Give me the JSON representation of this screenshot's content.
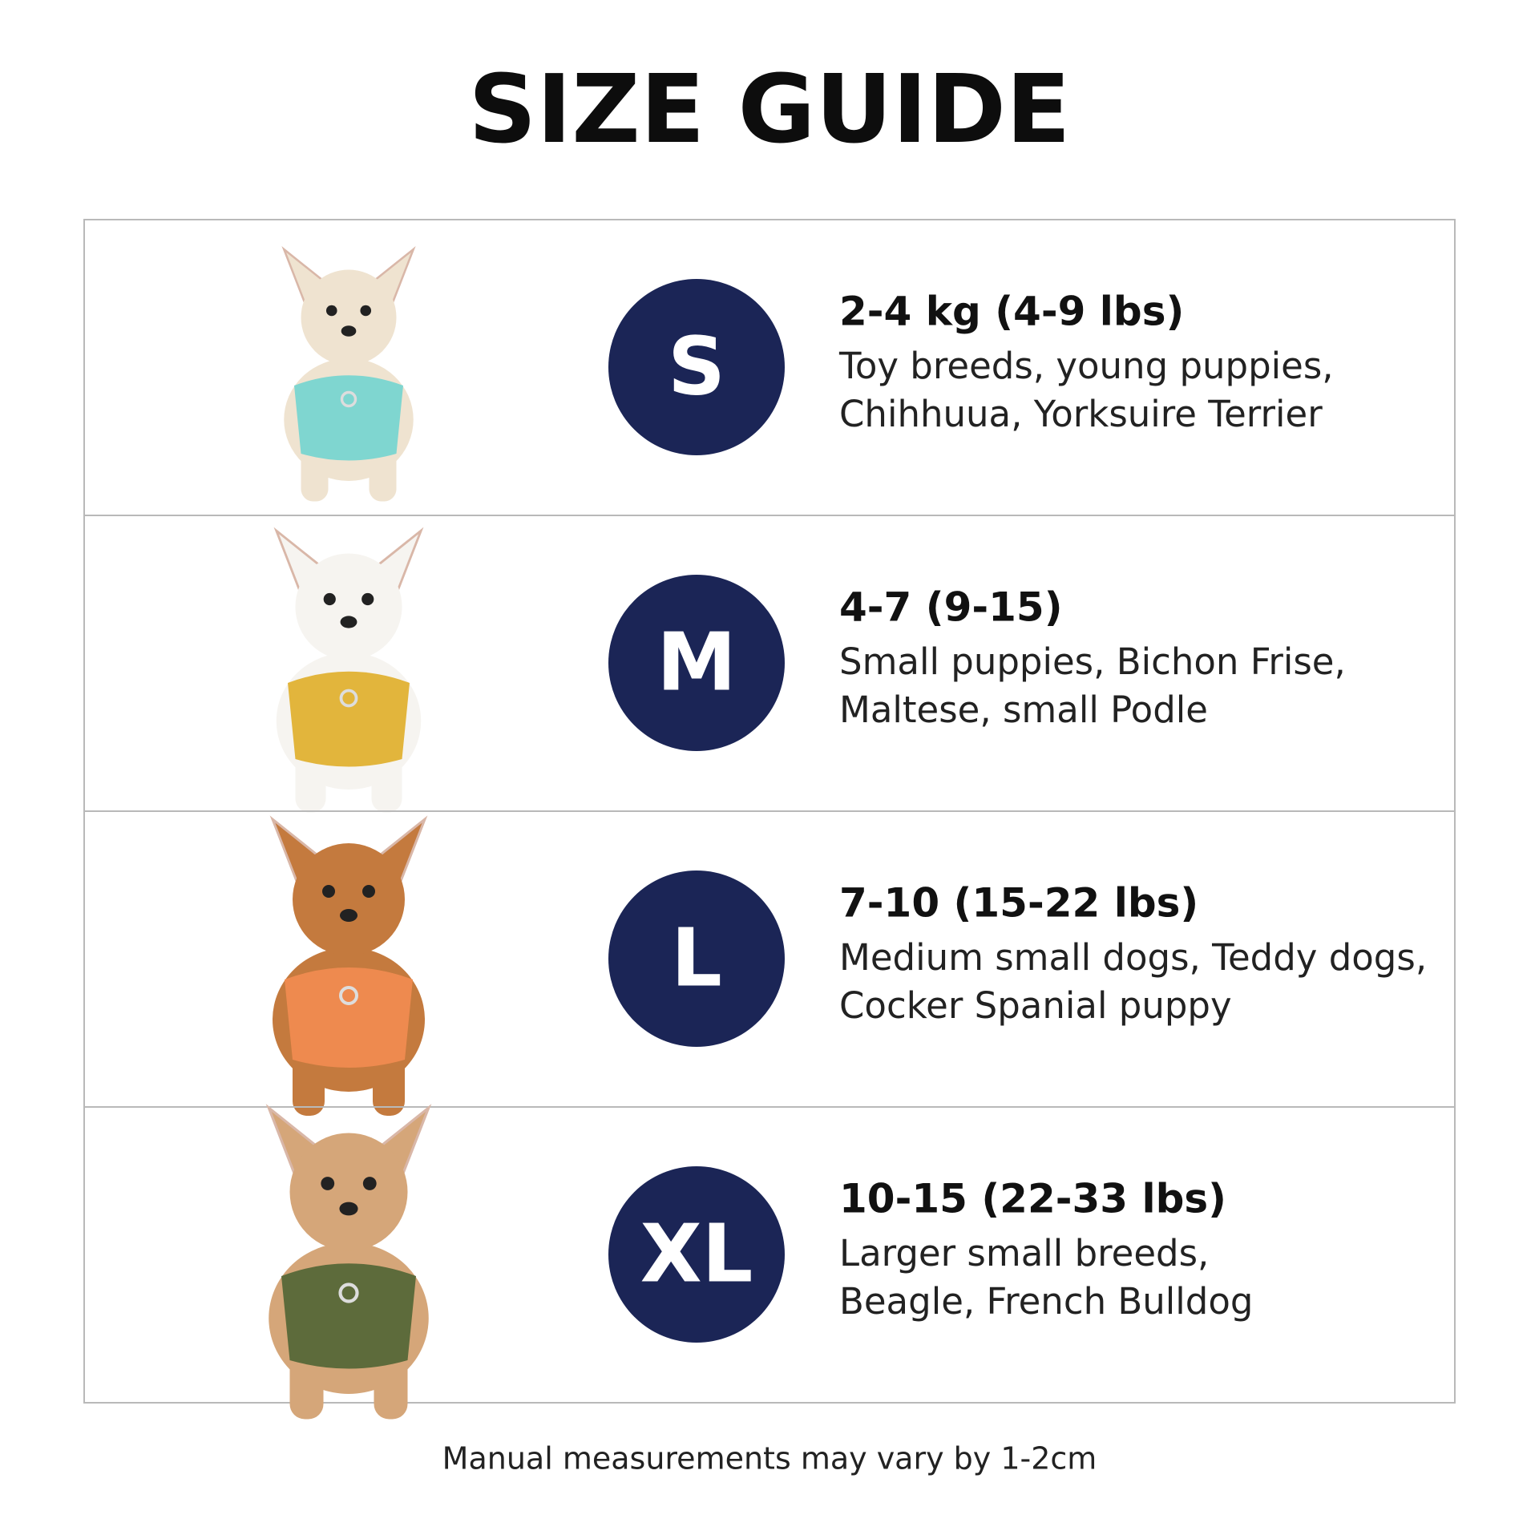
{
  "header": {
    "title": "SIZE GUIDE"
  },
  "sizes": [
    {
      "size": "S",
      "weight": "2-4 kg (4-9 lbs)",
      "description": [
        "Toy breeds, young puppies,",
        "Chihhuua, Yorksuire Terrier"
      ]
    },
    {
      "size": "M",
      "weight": "4-7 (9-15)",
      "description": [
        "Small puppies, Bichon Frise,",
        "Maltese, small Podle"
      ]
    },
    {
      "size": "L",
      "weight": "7-10 (15-22 lbs)",
      "description": [
        "Medium small dogs, Teddy dogs,",
        "Cocker Spanial puppy"
      ]
    },
    {
      "size": "XL",
      "weight": "10-15 (22-33 lbs)",
      "description": [
        "Larger small breeds,",
        "Beagle, French Bulldog"
      ]
    }
  ],
  "footer": {
    "note": "Manual measurements may vary by 1-2cm"
  }
}
